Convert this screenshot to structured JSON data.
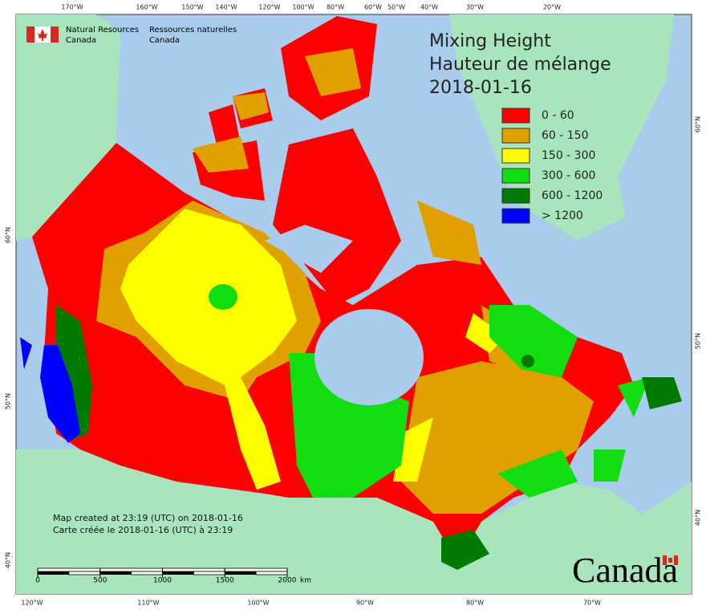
{
  "header": {
    "org_en": [
      "Natural Resources",
      "Canada"
    ],
    "org_fr": [
      "Ressources naturelles",
      "Canada"
    ]
  },
  "title": [
    "Mixing Height",
    "Hauteur de mélange",
    "2018-01-16"
  ],
  "legend": [
    {
      "label": "0 - 60",
      "color": "#ff0000"
    },
    {
      "label": "60 - 150",
      "color": "#e0a000"
    },
    {
      "label": "150 - 300",
      "color": "#ffff00"
    },
    {
      "label": "300 - 600",
      "color": "#11dd11"
    },
    {
      "label": "600 - 1200",
      "color": "#007a00"
    },
    {
      "label": "> 1200",
      "color": "#0000ff"
    }
  ],
  "footer": [
    "Map created at 23:19 (UTC) on 2018-01-16",
    "Carte créée le 2018-01-16 (UTC) à 23:19"
  ],
  "scale": {
    "ticks": [
      0,
      500,
      1000,
      1500,
      2000
    ],
    "unit": "km"
  },
  "graticule": {
    "top": [
      "170°W",
      "160°W",
      "150°W",
      "140°W",
      "120°W",
      "100°W",
      "80°W",
      "60°W",
      "50°W",
      "40°W",
      "30°W",
      "20°W"
    ],
    "bottom": [
      "120°W",
      "110°W",
      "100°W",
      "90°W",
      "80°W",
      "70°W"
    ],
    "left": [
      "60°N",
      "50°N",
      "40°N"
    ],
    "right": [
      "60°N",
      "50°N",
      "40°N"
    ]
  },
  "wordmark": "Canada"
}
